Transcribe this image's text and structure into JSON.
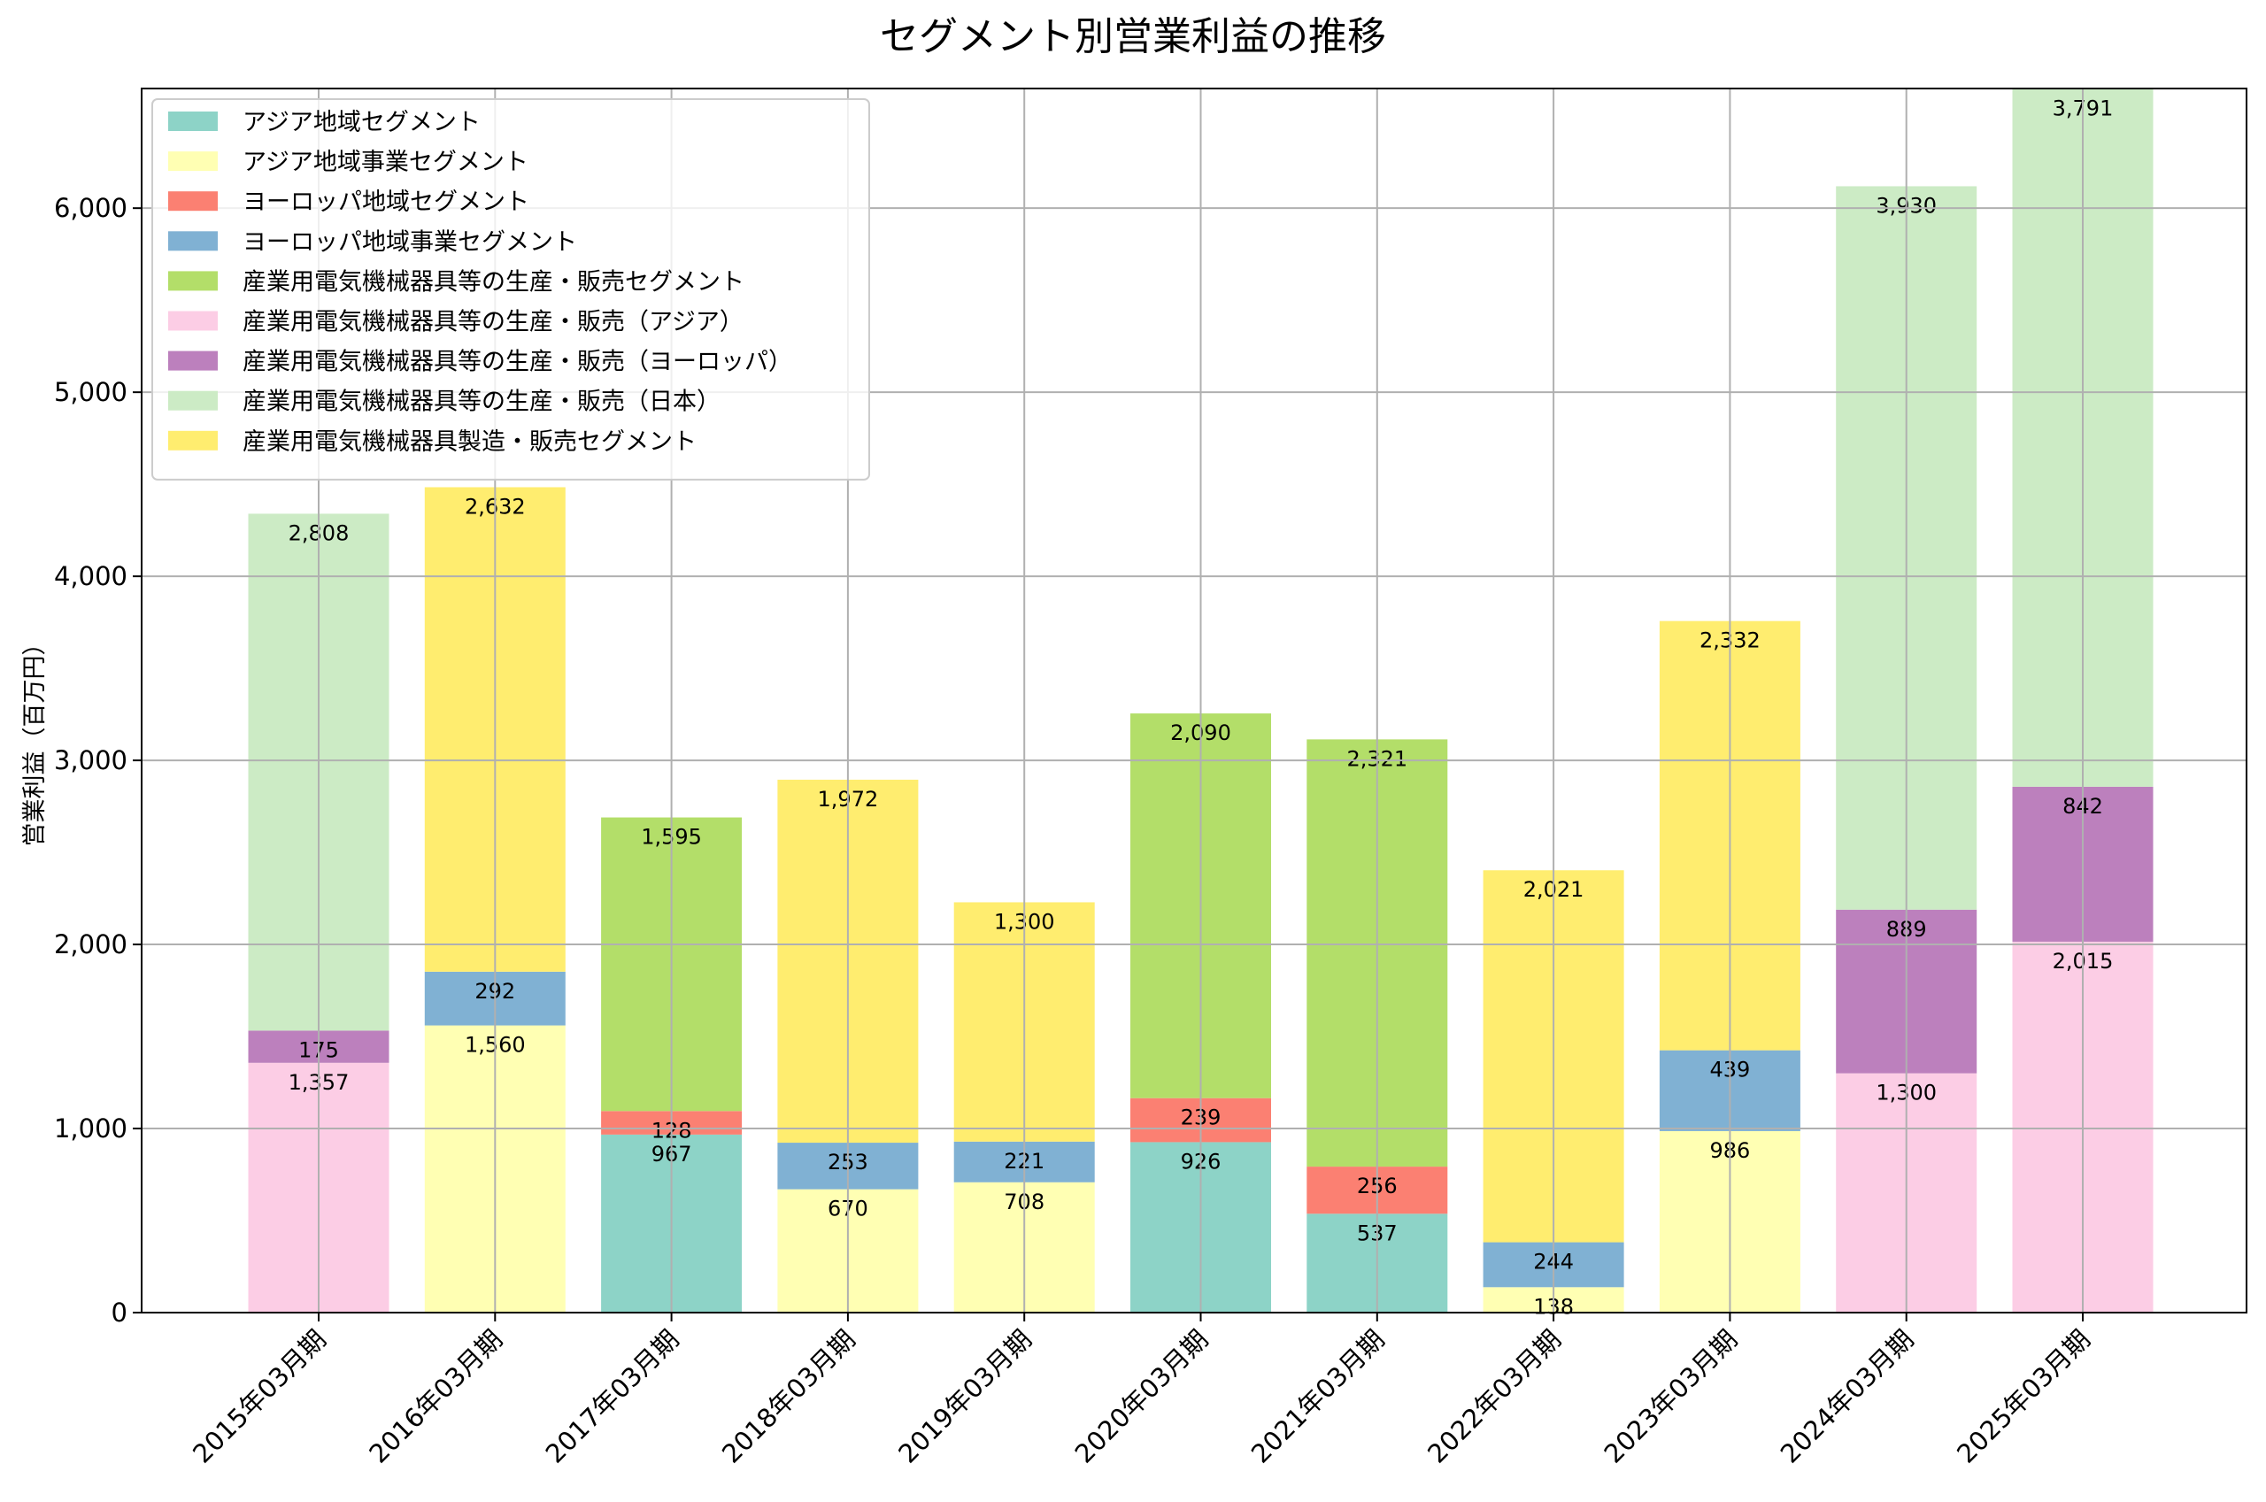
{
  "chart_data": {
    "type": "bar",
    "stacked": true,
    "title": "セグメント別営業利益の推移",
    "xlabel": "",
    "ylabel": "営業利益（百万円）",
    "ylim": [
      0,
      6650
    ],
    "yticks": [
      0,
      1000,
      2000,
      3000,
      4000,
      5000,
      6000
    ],
    "ytick_labels": [
      "0",
      "1,000",
      "2,000",
      "3,000",
      "4,000",
      "5,000",
      "6,000"
    ],
    "grid": true,
    "legend_position": "top-left",
    "categories": [
      "2015年03月期",
      "2016年03月期",
      "2017年03月期",
      "2018年03月期",
      "2019年03月期",
      "2020年03月期",
      "2021年03月期",
      "2022年03月期",
      "2023年03月期",
      "2024年03月期",
      "2025年03月期"
    ],
    "series": [
      {
        "name": "アジア地域セグメント",
        "color": "#8dd3c7",
        "values": [
          null,
          null,
          967,
          null,
          null,
          926,
          537,
          null,
          null,
          null,
          null
        ]
      },
      {
        "name": "アジア地域事業セグメント",
        "color": "#ffffb3",
        "values": [
          null,
          1560,
          null,
          670,
          708,
          null,
          null,
          138,
          986,
          null,
          null
        ]
      },
      {
        "name": "ヨーロッパ地域セグメント",
        "color": "#fb8072",
        "values": [
          null,
          null,
          128,
          null,
          null,
          239,
          256,
          null,
          null,
          null,
          null
        ]
      },
      {
        "name": "ヨーロッパ地域事業セグメント",
        "color": "#80b1d3",
        "values": [
          null,
          292,
          null,
          253,
          221,
          null,
          null,
          244,
          439,
          null,
          null
        ]
      },
      {
        "name": "産業用電気機械器具等の生産・販売セグメント",
        "color": "#b3de69",
        "values": [
          null,
          null,
          1595,
          null,
          null,
          2090,
          2321,
          null,
          null,
          null,
          null
        ]
      },
      {
        "name": "産業用電気機械器具等の生産・販売（アジア）",
        "color": "#fccde5",
        "values": [
          1357,
          null,
          null,
          null,
          null,
          null,
          null,
          null,
          null,
          1300,
          2015
        ]
      },
      {
        "name": "産業用電気機械器具等の生産・販売（ヨーロッパ）",
        "color": "#bc80bd",
        "values": [
          175,
          null,
          null,
          null,
          null,
          null,
          null,
          null,
          null,
          889,
          842
        ]
      },
      {
        "name": "産業用電気機械器具等の生産・販売（日本）",
        "color": "#ccebc5",
        "values": [
          2808,
          null,
          null,
          null,
          null,
          null,
          null,
          null,
          null,
          3930,
          3791
        ]
      },
      {
        "name": "産業用電気機械器具製造・販売セグメント",
        "color": "#ffed6f",
        "values": [
          null,
          2632,
          null,
          1972,
          1300,
          null,
          null,
          2021,
          2332,
          null,
          null
        ]
      }
    ]
  }
}
